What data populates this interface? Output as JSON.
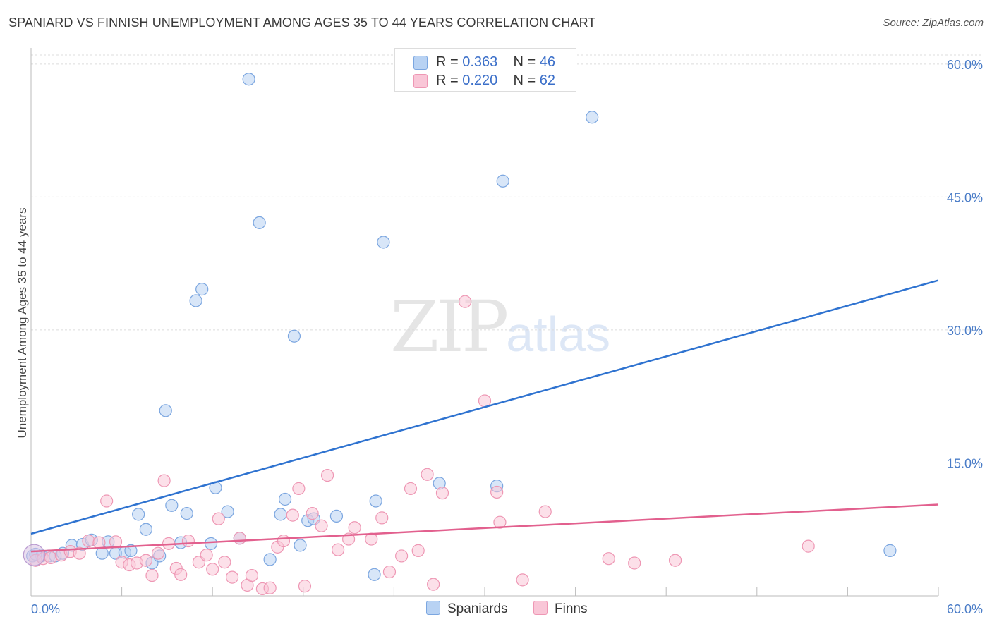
{
  "header": {
    "title": "SPANIARD VS FINNISH UNEMPLOYMENT AMONG AGES 35 TO 44 YEARS CORRELATION CHART",
    "source": "Source: ZipAtlas.com"
  },
  "watermark": {
    "zip": "ZIP",
    "atlas": "atlas"
  },
  "legend": {
    "items": [
      {
        "r_label": "R = ",
        "r_value": "0.363",
        "n_label": "N = ",
        "n_value": "46",
        "fill": "#b8d2f3",
        "stroke": "#7ba6e0"
      },
      {
        "r_label": "R = ",
        "r_value": "0.220",
        "n_label": "N = ",
        "n_value": "62",
        "fill": "#f9c6d7",
        "stroke": "#ee97b4"
      }
    ]
  },
  "chart_data": {
    "type": "scatter",
    "xlabel": "",
    "ylabel": "Unemployment Among Ages 35 to 44 years",
    "xlim": [
      0,
      60
    ],
    "ylim": [
      0,
      61.5
    ],
    "x_tick_labels": [
      "0.0%",
      "60.0%"
    ],
    "y_ticks": [
      15,
      30,
      45,
      60
    ],
    "y_tick_labels": [
      "15.0%",
      "30.0%",
      "45.0%",
      "60.0%"
    ],
    "grid": true,
    "legend_position": "top-center",
    "series": [
      {
        "name": "Spaniards",
        "color": "#b8d2f3",
        "stroke": "#7ba6e0",
        "line_color": "#2f73d0",
        "trend": [
          [
            0,
            7.0
          ],
          [
            60,
            35.6
          ]
        ],
        "points": [
          [
            0.1,
            4.5
          ],
          [
            0.7,
            4.5
          ],
          [
            1.2,
            4.5
          ],
          [
            1.6,
            4.5
          ],
          [
            2.1,
            4.8
          ],
          [
            2.7,
            5.7
          ],
          [
            3.4,
            5.8
          ],
          [
            4.0,
            6.3
          ],
          [
            4.7,
            4.8
          ],
          [
            5.1,
            6.1
          ],
          [
            5.6,
            4.8
          ],
          [
            6.2,
            4.9
          ],
          [
            6.6,
            5.1
          ],
          [
            7.1,
            9.2
          ],
          [
            7.6,
            7.5
          ],
          [
            8.0,
            3.7
          ],
          [
            8.5,
            4.5
          ],
          [
            8.9,
            20.9
          ],
          [
            9.3,
            10.2
          ],
          [
            9.9,
            6.0
          ],
          [
            10.3,
            9.3
          ],
          [
            10.9,
            33.3
          ],
          [
            11.3,
            34.6
          ],
          [
            11.9,
            5.9
          ],
          [
            12.2,
            12.2
          ],
          [
            13.0,
            9.5
          ],
          [
            13.8,
            6.5
          ],
          [
            14.4,
            58.3
          ],
          [
            15.1,
            42.1
          ],
          [
            15.8,
            4.1
          ],
          [
            16.5,
            9.2
          ],
          [
            16.8,
            10.9
          ],
          [
            17.4,
            29.3
          ],
          [
            17.8,
            5.7
          ],
          [
            18.3,
            8.5
          ],
          [
            18.7,
            8.7
          ],
          [
            20.2,
            9.0
          ],
          [
            22.7,
            2.4
          ],
          [
            22.8,
            10.7
          ],
          [
            23.3,
            39.9
          ],
          [
            27.0,
            12.7
          ],
          [
            30.8,
            12.4
          ],
          [
            31.2,
            46.8
          ],
          [
            37.1,
            54.0
          ],
          [
            56.8,
            5.1
          ],
          [
            0.3,
            4.7
          ]
        ]
      },
      {
        "name": "Finns",
        "color": "#f9c6d7",
        "stroke": "#ee97b4",
        "line_color": "#e2608e",
        "trend": [
          [
            0,
            5.0
          ],
          [
            60,
            10.3
          ]
        ],
        "points": [
          [
            0.3,
            4.0
          ],
          [
            0.8,
            4.2
          ],
          [
            1.3,
            4.3
          ],
          [
            2.0,
            4.6
          ],
          [
            2.6,
            5.0
          ],
          [
            3.2,
            4.8
          ],
          [
            3.8,
            6.2
          ],
          [
            4.5,
            6.0
          ],
          [
            5.0,
            10.7
          ],
          [
            5.6,
            6.1
          ],
          [
            6.0,
            3.8
          ],
          [
            6.5,
            3.5
          ],
          [
            7.0,
            3.7
          ],
          [
            7.6,
            4.0
          ],
          [
            8.0,
            2.3
          ],
          [
            8.4,
            4.8
          ],
          [
            8.8,
            13.0
          ],
          [
            9.1,
            5.9
          ],
          [
            9.6,
            3.1
          ],
          [
            9.9,
            2.4
          ],
          [
            10.4,
            6.2
          ],
          [
            11.1,
            3.8
          ],
          [
            11.6,
            4.6
          ],
          [
            12.0,
            3.0
          ],
          [
            12.4,
            8.7
          ],
          [
            12.8,
            3.8
          ],
          [
            13.3,
            2.1
          ],
          [
            13.8,
            6.5
          ],
          [
            14.3,
            1.2
          ],
          [
            14.6,
            2.3
          ],
          [
            15.3,
            0.8
          ],
          [
            15.8,
            0.9
          ],
          [
            16.3,
            5.5
          ],
          [
            16.7,
            6.2
          ],
          [
            17.3,
            9.1
          ],
          [
            17.7,
            12.1
          ],
          [
            18.1,
            1.1
          ],
          [
            18.6,
            9.3
          ],
          [
            19.2,
            7.9
          ],
          [
            19.6,
            13.6
          ],
          [
            20.3,
            5.2
          ],
          [
            21.0,
            6.4
          ],
          [
            21.4,
            7.7
          ],
          [
            22.5,
            6.4
          ],
          [
            23.2,
            8.8
          ],
          [
            23.7,
            2.7
          ],
          [
            24.5,
            4.5
          ],
          [
            25.1,
            12.1
          ],
          [
            25.6,
            5.1
          ],
          [
            26.2,
            13.7
          ],
          [
            26.6,
            1.3
          ],
          [
            27.2,
            11.6
          ],
          [
            28.7,
            33.2
          ],
          [
            30.8,
            11.7
          ],
          [
            31.0,
            8.3
          ],
          [
            34.0,
            9.5
          ],
          [
            32.5,
            1.8
          ],
          [
            38.2,
            4.2
          ],
          [
            39.9,
            3.7
          ],
          [
            42.6,
            4.0
          ],
          [
            51.4,
            5.6
          ],
          [
            30.0,
            22.0
          ]
        ]
      }
    ]
  }
}
